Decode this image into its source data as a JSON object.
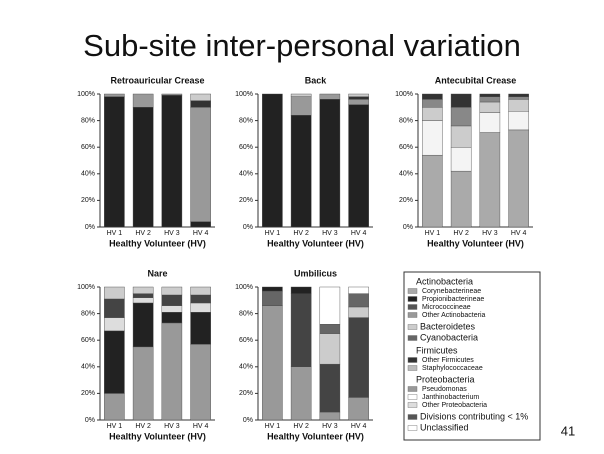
{
  "title": "Sub-site inter-personal variation",
  "page_number": "41",
  "legend": [
    {
      "title": "Actinobacteria",
      "items": [
        {
          "name": "Corynebacterineae",
          "color": "#aaaaaa"
        },
        {
          "name": "Propionibacterineae",
          "color": "#222222"
        },
        {
          "name": "Micrococcineae",
          "color": "#555555"
        },
        {
          "name": "Other Actinobacteria",
          "color": "#999999"
        }
      ]
    },
    {
      "items": [
        {
          "name": "Bacteroidetes",
          "color": "#cccccc"
        },
        {
          "name": "Cyanobacteria",
          "color": "#666666"
        }
      ]
    },
    {
      "title": "Firmicutes",
      "items": [
        {
          "name": "Other Firmicutes",
          "color": "#333333"
        },
        {
          "name": "Staphylococcaceae",
          "color": "#bbbbbb"
        }
      ]
    },
    {
      "title": "Proteobacteria",
      "items": [
        {
          "name": "Pseudomonas",
          "color": "#999999"
        },
        {
          "name": "Janthinobacterium",
          "color": "#ffffff"
        },
        {
          "name": "Other Proteobacteria",
          "color": "#dddddd"
        }
      ]
    },
    {
      "items": [
        {
          "name": "Divisions contributing < 1%",
          "color": "#555555"
        },
        {
          "name": "Unclassified",
          "color": "#ffffff"
        }
      ]
    }
  ],
  "chart_data": [
    {
      "type": "stacked_bar",
      "title": "Retroauricular Crease",
      "x_label": "Healthy Volunteer (HV)",
      "categories": [
        "HV 1",
        "HV 2",
        "HV 3",
        "HV 4"
      ],
      "ylim": [
        0,
        100
      ],
      "yticks": [
        {
          "value": 0,
          "label": "0%"
        },
        {
          "value": 20,
          "label": "20%"
        },
        {
          "value": 40,
          "label": "40%"
        },
        {
          "value": 60,
          "label": "60%"
        },
        {
          "value": 80,
          "label": "80%"
        },
        {
          "value": 100,
          "label": "100%"
        }
      ],
      "series": [
        {
          "color": "#222222",
          "values": [
            98,
            90,
            99,
            4
          ]
        },
        {
          "color": "#999999",
          "values": [
            2,
            10,
            1,
            86
          ]
        },
        {
          "color": "#333333",
          "values": [
            0,
            0,
            0,
            5
          ]
        },
        {
          "color": "#cccccc",
          "values": [
            0,
            0,
            0,
            5
          ]
        }
      ]
    },
    {
      "type": "stacked_bar",
      "title": "Back",
      "x_label": "Healthy Volunteer (HV)",
      "categories": [
        "HV 1",
        "HV 2",
        "HV 3",
        "HV 4"
      ],
      "ylim": [
        0,
        100
      ],
      "yticks": [
        {
          "value": 0,
          "label": "0%"
        },
        {
          "value": 20,
          "label": "20%"
        },
        {
          "value": 40,
          "label": "40%"
        },
        {
          "value": 60,
          "label": "60%"
        },
        {
          "value": 80,
          "label": "80%"
        },
        {
          "value": 100,
          "label": "100%"
        }
      ],
      "series": [
        {
          "color": "#222222",
          "values": [
            100,
            84,
            96,
            92
          ]
        },
        {
          "color": "#999999",
          "values": [
            0,
            14,
            4,
            4
          ]
        },
        {
          "color": "#333333",
          "values": [
            0,
            0,
            0,
            2
          ]
        },
        {
          "color": "#cccccc",
          "values": [
            0,
            2,
            0,
            2
          ]
        }
      ]
    },
    {
      "type": "stacked_bar",
      "title": "Antecubital Crease",
      "x_label": "Healthy Volunteer (HV)",
      "categories": [
        "HV 1",
        "HV 2",
        "HV 3",
        "HV 4"
      ],
      "ylim": [
        0,
        100
      ],
      "yticks": [
        {
          "value": 0,
          "label": "0%"
        },
        {
          "value": 20,
          "label": "20%"
        },
        {
          "value": 40,
          "label": "40%"
        },
        {
          "value": 60,
          "label": "60%"
        },
        {
          "value": 80,
          "label": "80%"
        },
        {
          "value": 100,
          "label": "100%"
        }
      ],
      "series": [
        {
          "color": "#aaaaaa",
          "values": [
            54,
            42,
            71,
            73
          ]
        },
        {
          "color": "#f4f4f4",
          "values": [
            26,
            18,
            15,
            14
          ]
        },
        {
          "color": "#cccccc",
          "values": [
            10,
            16,
            8,
            9
          ]
        },
        {
          "color": "#888888",
          "values": [
            6,
            14,
            4,
            2
          ]
        },
        {
          "color": "#333333",
          "values": [
            4,
            10,
            2,
            2
          ]
        }
      ]
    },
    {
      "type": "stacked_bar",
      "title": "Nare",
      "x_label": "Healthy Volunteer (HV)",
      "categories": [
        "HV 1",
        "HV 2",
        "HV 3",
        "HV 4"
      ],
      "ylim": [
        0,
        100
      ],
      "yticks": [
        {
          "value": 0,
          "label": "0%"
        },
        {
          "value": 20,
          "label": "20%"
        },
        {
          "value": 40,
          "label": "40%"
        },
        {
          "value": 60,
          "label": "60%"
        },
        {
          "value": 80,
          "label": "80%"
        },
        {
          "value": 100,
          "label": "100%"
        }
      ],
      "series": [
        {
          "color": "#999999",
          "values": [
            20,
            55,
            73,
            57
          ]
        },
        {
          "color": "#222222",
          "values": [
            47,
            33,
            8,
            24
          ]
        },
        {
          "color": "#dddddd",
          "values": [
            10,
            4,
            5,
            7
          ]
        },
        {
          "color": "#444444",
          "values": [
            14,
            3,
            8,
            6
          ]
        },
        {
          "color": "#cccccc",
          "values": [
            9,
            5,
            6,
            6
          ]
        }
      ]
    },
    {
      "type": "stacked_bar",
      "title": "Umbilicus",
      "x_label": "Healthy Volunteer (HV)",
      "categories": [
        "HV 1",
        "HV 2",
        "HV 3",
        "HV 4"
      ],
      "ylim": [
        0,
        100
      ],
      "yticks": [
        {
          "value": 0,
          "label": "0%"
        },
        {
          "value": 20,
          "label": "20%"
        },
        {
          "value": 40,
          "label": "40%"
        },
        {
          "value": 60,
          "label": "60%"
        },
        {
          "value": 80,
          "label": "80%"
        },
        {
          "value": 100,
          "label": "100%"
        }
      ],
      "series": [
        {
          "color": "#999999",
          "values": [
            86,
            40,
            6,
            17
          ]
        },
        {
          "color": "#444444",
          "values": [
            0,
            55,
            36,
            60
          ]
        },
        {
          "color": "#cccccc",
          "values": [
            0,
            0,
            23,
            8
          ]
        },
        {
          "color": "#666666",
          "values": [
            11,
            0,
            7,
            10
          ]
        },
        {
          "color": "#222222",
          "values": [
            3,
            5,
            0,
            0
          ]
        },
        {
          "color": "#ffffff",
          "values": [
            0,
            0,
            28,
            5
          ]
        }
      ]
    }
  ]
}
